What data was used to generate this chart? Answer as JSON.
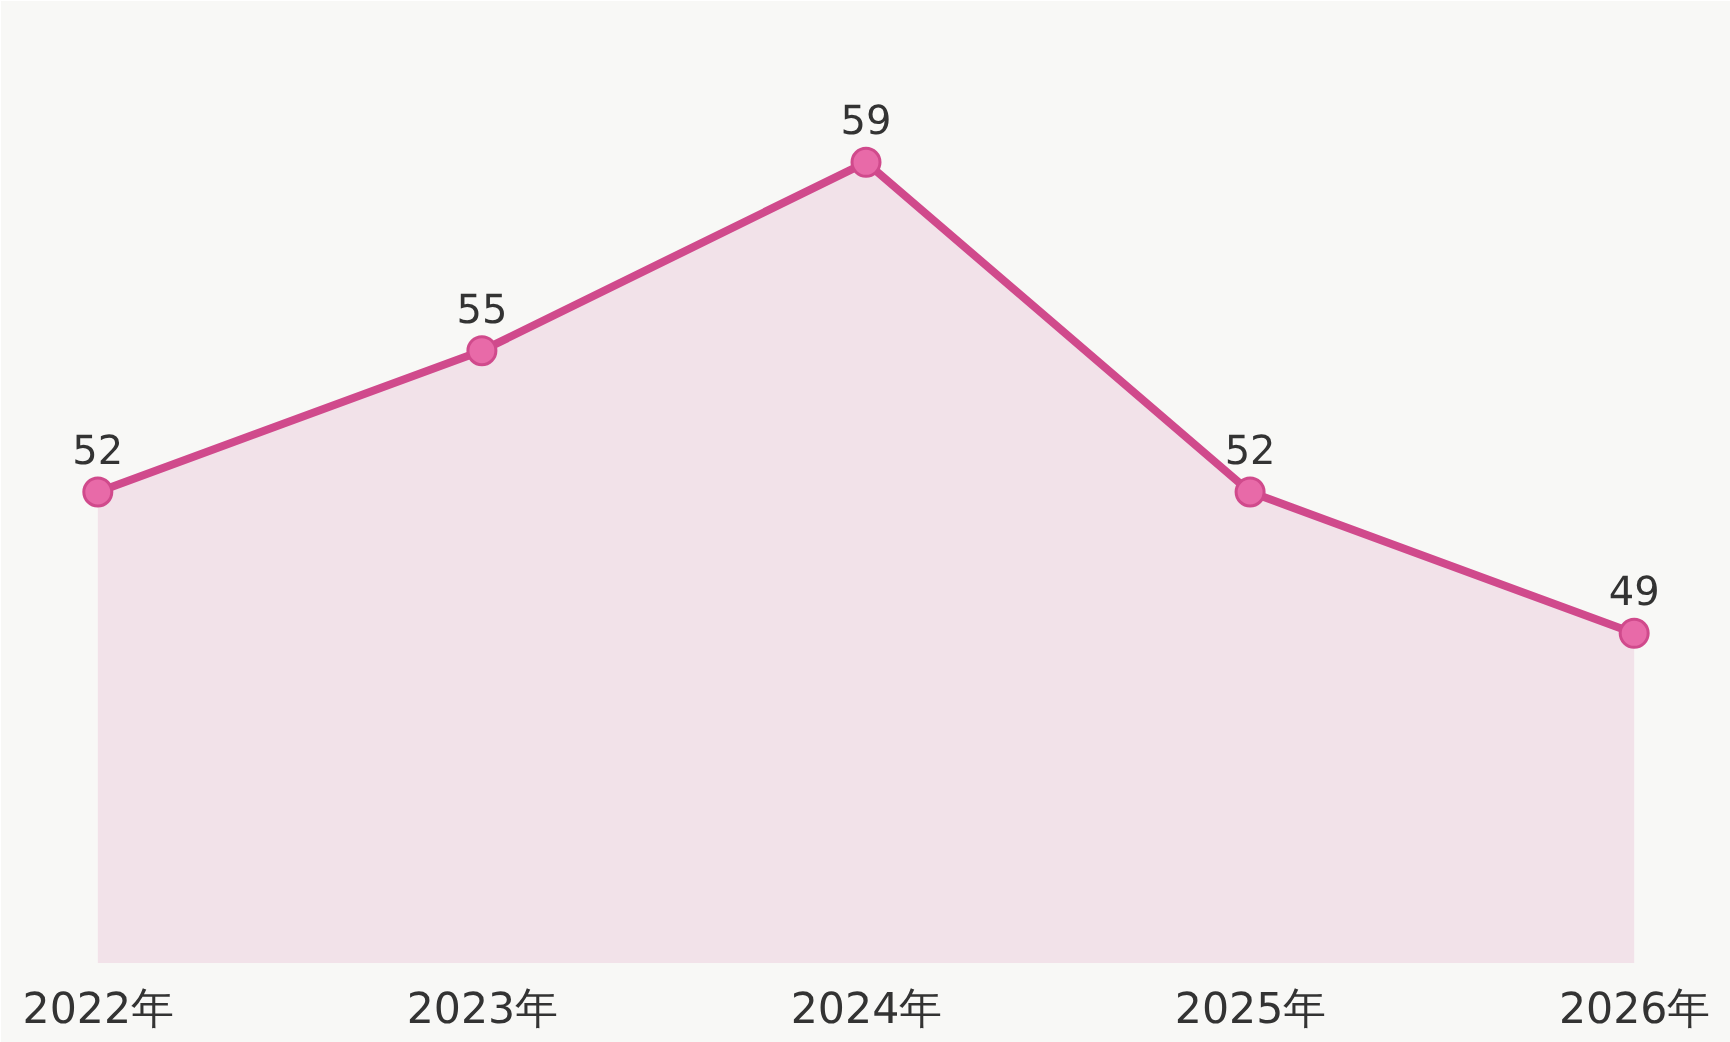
{
  "chart_data": {
    "type": "area",
    "categories": [
      "2022年",
      "2023年",
      "2024年",
      "2025年",
      "2026年"
    ],
    "series": [
      {
        "color": "#d04a8c",
        "values": [
          52,
          55,
          59,
          52,
          49
        ]
      }
    ],
    "ylim": [
      42,
      62
    ],
    "data_labels": true,
    "marker": "circle",
    "grid": false,
    "tick_labels": "x"
  }
}
